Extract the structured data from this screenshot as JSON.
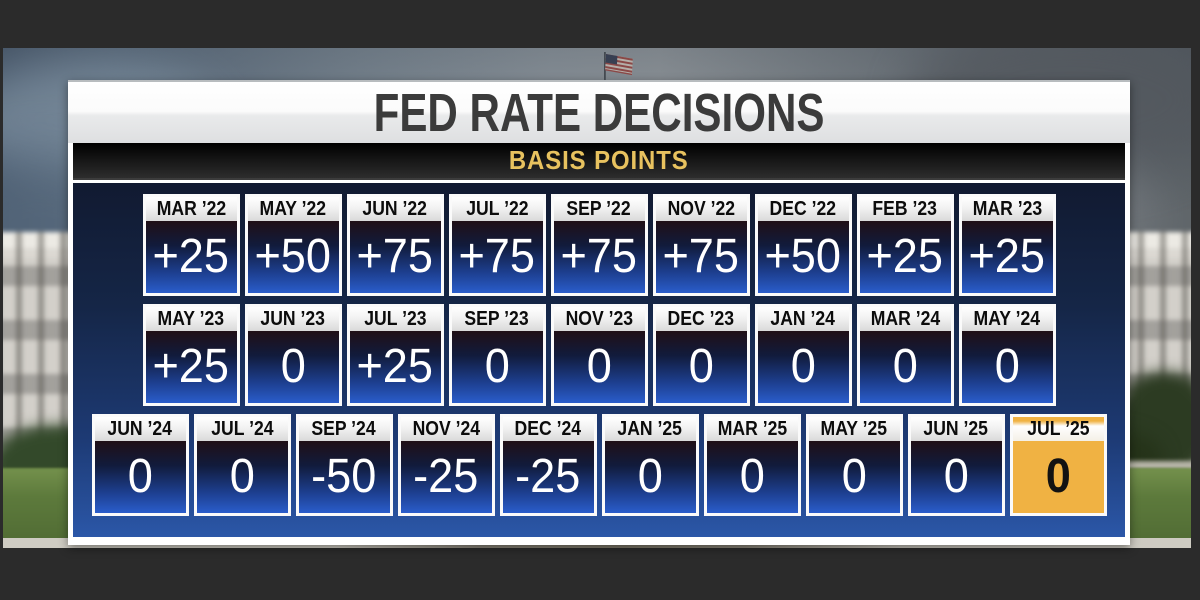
{
  "header": {
    "title": "FED RATE DECISIONS",
    "subtitle": "BASIS POINTS"
  },
  "icons": {
    "top_center": "us-flag"
  },
  "colors": {
    "accent_gold": "#e8c25f",
    "highlight_cell_gold": "#f0b243",
    "cell_gradient_top": "#200f16",
    "cell_gradient_bottom": "#2a5dcb",
    "grid_navy_top": "#111a31",
    "grid_navy_bottom": "#2b57a8",
    "frame_charcoal": "#2b2b2b"
  },
  "chart_data": {
    "type": "table",
    "title": "FED RATE DECISIONS",
    "subtitle": "BASIS POINTS",
    "unit": "basis points",
    "highlighted": "JUL ’25",
    "rows": [
      [
        {
          "month": "MAR ’22",
          "value": "+25"
        },
        {
          "month": "MAY ’22",
          "value": "+50"
        },
        {
          "month": "JUN ’22",
          "value": "+75"
        },
        {
          "month": "JUL ’22",
          "value": "+75"
        },
        {
          "month": "SEP ’22",
          "value": "+75"
        },
        {
          "month": "NOV ’22",
          "value": "+75"
        },
        {
          "month": "DEC ’22",
          "value": "+50"
        },
        {
          "month": "FEB ’23",
          "value": "+25"
        },
        {
          "month": "MAR ’23",
          "value": "+25"
        }
      ],
      [
        {
          "month": "MAY ’23",
          "value": "+25"
        },
        {
          "month": "JUN ’23",
          "value": "0"
        },
        {
          "month": "JUL ’23",
          "value": "+25"
        },
        {
          "month": "SEP ’23",
          "value": "0"
        },
        {
          "month": "NOV ’23",
          "value": "0"
        },
        {
          "month": "DEC ’23",
          "value": "0"
        },
        {
          "month": "JAN ’24",
          "value": "0"
        },
        {
          "month": "MAR ’24",
          "value": "0"
        },
        {
          "month": "MAY ’24",
          "value": "0"
        }
      ],
      [
        {
          "month": "JUN ’24",
          "value": "0"
        },
        {
          "month": "JUL ’24",
          "value": "0"
        },
        {
          "month": "SEP ’24",
          "value": "-50"
        },
        {
          "month": "NOV ’24",
          "value": "-25"
        },
        {
          "month": "DEC ’24",
          "value": "-25"
        },
        {
          "month": "JAN ’25",
          "value": "0"
        },
        {
          "month": "MAR ’25",
          "value": "0"
        },
        {
          "month": "MAY ’25",
          "value": "0"
        },
        {
          "month": "JUN ’25",
          "value": "0"
        },
        {
          "month": "JUL ’25",
          "value": "0",
          "highlight": true
        }
      ]
    ]
  }
}
